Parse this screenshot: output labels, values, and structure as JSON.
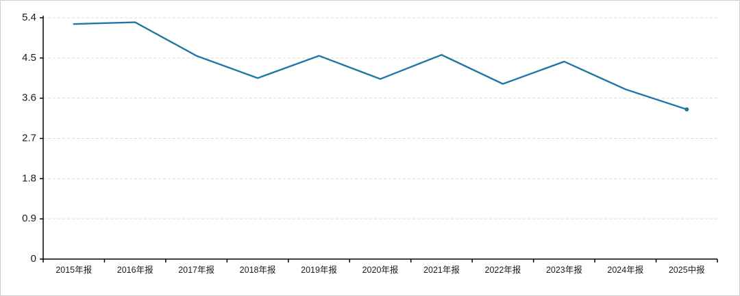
{
  "chart_data": {
    "type": "line",
    "categories": [
      "2015年报",
      "2016年报",
      "2017年报",
      "2018年报",
      "2019年报",
      "2020年报",
      "2021年报",
      "2022年报",
      "2023年报",
      "2024年报",
      "2025中报"
    ],
    "values": [
      5.26,
      5.3,
      4.55,
      4.05,
      4.55,
      4.03,
      4.57,
      3.92,
      4.42,
      3.8,
      3.35
    ],
    "title": "",
    "xlabel": "",
    "ylabel": "",
    "ylim": [
      0,
      5.4
    ],
    "yticks": [
      0,
      0.9,
      1.8,
      2.7,
      3.6,
      4.5,
      5.4
    ],
    "ytick_labels": [
      "0",
      "0.9",
      "1.8",
      "2.7",
      "3.6",
      "4.5",
      "5.4"
    ],
    "grid": "horizontal-dashed",
    "legend": "none",
    "colors": {
      "line": "#2077a6",
      "axis": "#000000",
      "grid": "#d9d9d9",
      "frame_border": "#cfcfcf",
      "background": "#ffffff",
      "label_text": "#1a1a1a"
    }
  }
}
